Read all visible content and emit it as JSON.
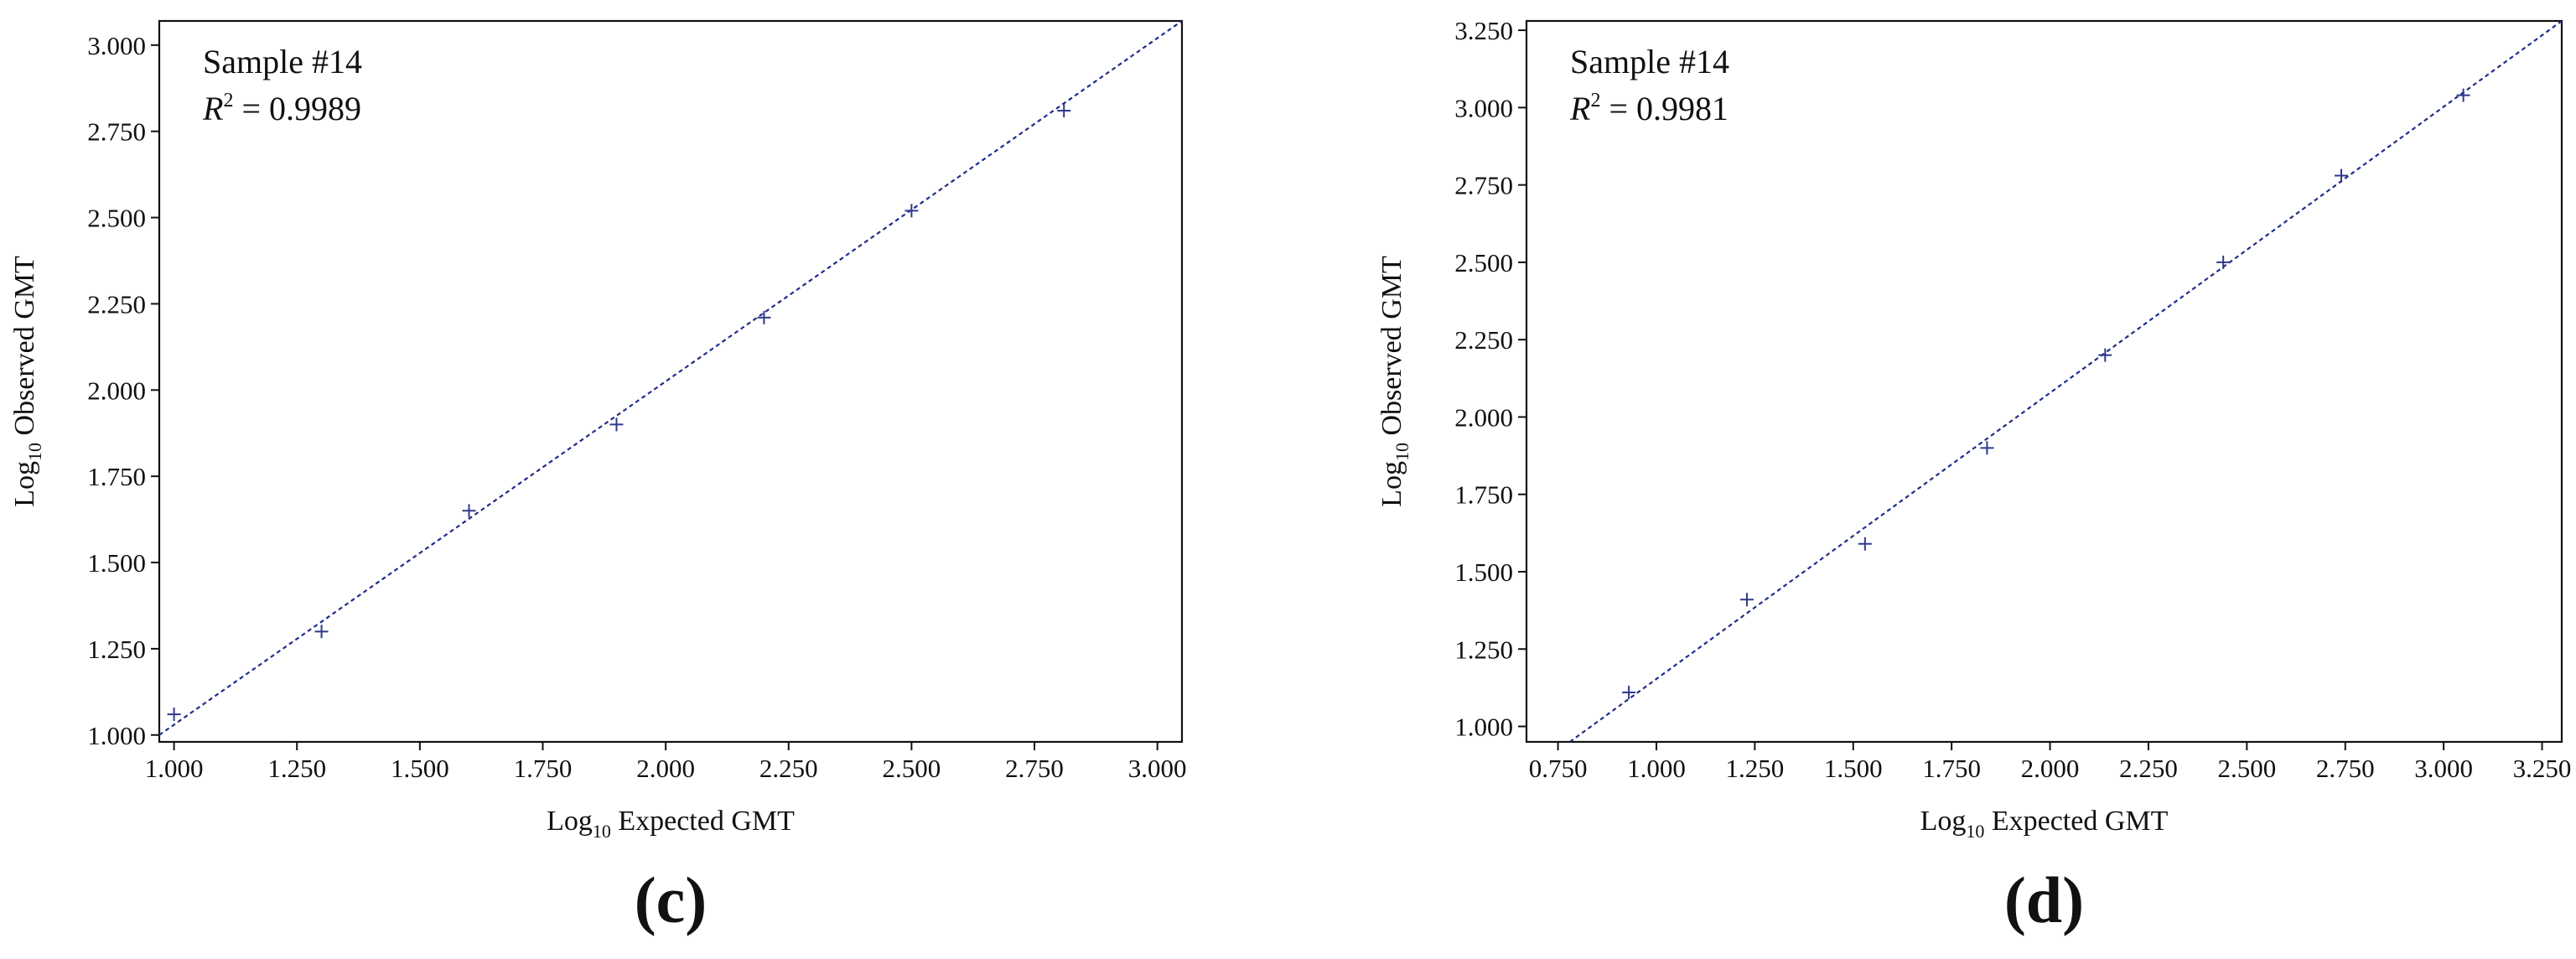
{
  "chart_data": [
    {
      "type": "scatter",
      "panel_label": "(c)",
      "annotation": {
        "sample": "Sample #14",
        "r2_symbol": "R",
        "r2_sup": "2",
        "r2_value": " = 0.9989"
      },
      "xlabel": {
        "base": "Log",
        "sub": "10",
        "rest": " Expected GMT"
      },
      "ylabel": {
        "base": "Log",
        "sub": "10",
        "rest": " Observed GMT"
      },
      "xlim": [
        0.97,
        3.05
      ],
      "ylim": [
        0.98,
        3.07
      ],
      "xticks": [
        "1.000",
        "1.250",
        "1.500",
        "1.750",
        "2.000",
        "2.250",
        "2.500",
        "2.750",
        "3.000"
      ],
      "yticks": [
        "1.000",
        "1.250",
        "1.500",
        "1.750",
        "2.000",
        "2.250",
        "2.500",
        "2.750",
        "3.000"
      ],
      "marker": "+",
      "marker_color": "#2e3a8c",
      "line_color": "#1f2d8a",
      "grid": false,
      "points": [
        {
          "x": 1.0,
          "y": 1.06
        },
        {
          "x": 1.3,
          "y": 1.3
        },
        {
          "x": 1.6,
          "y": 1.65
        },
        {
          "x": 1.9,
          "y": 1.9
        },
        {
          "x": 2.2,
          "y": 2.21
        },
        {
          "x": 2.5,
          "y": 2.52
        },
        {
          "x": 2.81,
          "y": 2.81
        }
      ],
      "fit_line": {
        "x": [
          0.97,
          3.05
        ],
        "y": [
          1.0,
          3.07
        ]
      }
    },
    {
      "type": "scatter",
      "panel_label": "(d)",
      "annotation": {
        "sample": "Sample #14",
        "r2_symbol": "R",
        "r2_sup": "2",
        "r2_value": " = 0.9981"
      },
      "xlabel": {
        "base": "Log",
        "sub": "10",
        "rest": " Expected GMT"
      },
      "ylabel": {
        "base": "Log",
        "sub": "10",
        "rest": " Observed GMT"
      },
      "xlim": [
        0.67,
        3.3
      ],
      "ylim": [
        0.95,
        3.28
      ],
      "xticks": [
        "0.750",
        "1.000",
        "1.250",
        "1.500",
        "1.750",
        "2.000",
        "2.250",
        "2.500",
        "2.750",
        "3.000",
        "3.250"
      ],
      "yticks": [
        "1.000",
        "1.250",
        "1.500",
        "1.750",
        "2.000",
        "2.250",
        "2.500",
        "2.750",
        "3.000",
        "3.250"
      ],
      "marker": "+",
      "marker_color": "#2e3a8c",
      "line_color": "#1f2d8a",
      "grid": false,
      "points": [
        {
          "x": 0.93,
          "y": 1.11
        },
        {
          "x": 1.23,
          "y": 1.41
        },
        {
          "x": 1.53,
          "y": 1.59
        },
        {
          "x": 1.84,
          "y": 1.9
        },
        {
          "x": 2.14,
          "y": 2.2
        },
        {
          "x": 2.44,
          "y": 2.5
        },
        {
          "x": 2.74,
          "y": 2.78
        },
        {
          "x": 3.05,
          "y": 3.04
        }
      ],
      "fit_line": {
        "x": [
          0.78,
          3.3
        ],
        "y": [
          0.95,
          3.28
        ]
      }
    }
  ]
}
